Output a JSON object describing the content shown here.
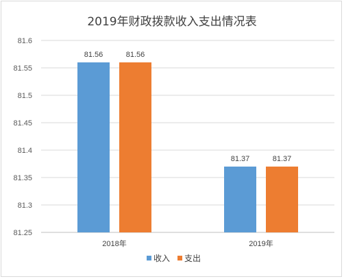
{
  "chart_data": {
    "type": "bar",
    "title": "2019年财政拨款收入支出情况表",
    "categories": [
      "2018年",
      "2019年"
    ],
    "series": [
      {
        "name": "收入",
        "values": [
          81.56,
          81.37
        ],
        "color": "#5b9bd5"
      },
      {
        "name": "支出",
        "values": [
          81.56,
          81.37
        ],
        "color": "#ed7d31"
      }
    ],
    "ylim": [
      81.25,
      81.6
    ],
    "yticks": [
      "81.25",
      "81.3",
      "81.35",
      "81.4",
      "81.45",
      "81.5",
      "81.55",
      "81.6"
    ],
    "data_labels": [
      [
        "81.56",
        "81.37"
      ],
      [
        "81.56",
        "81.37"
      ]
    ],
    "grid": true,
    "legend_position": "bottom"
  }
}
